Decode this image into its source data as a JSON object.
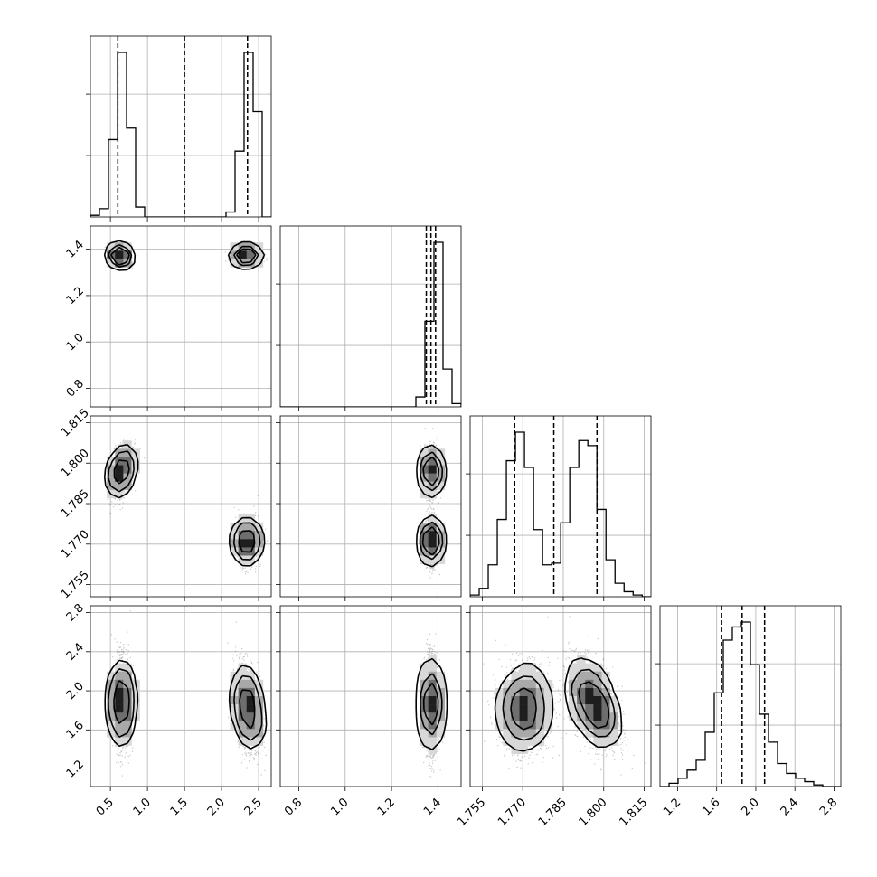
{
  "chart_data": {
    "type": "corner",
    "title": "",
    "parameters": [
      {
        "name": "",
        "range": [
          0.23,
          2.67
        ],
        "ticks": [
          0.5,
          1.0,
          1.5,
          2.0,
          2.5
        ],
        "tick_labels": [
          "0.5",
          "1.0",
          "1.5",
          "2.0",
          "2.5"
        ]
      },
      {
        "name": "",
        "range": [
          0.72,
          1.5
        ],
        "ticks": [
          0.8,
          1.0,
          1.2,
          1.4
        ],
        "tick_labels": [
          "0.8",
          "1.0",
          "1.2",
          "1.4"
        ]
      },
      {
        "name": "",
        "range": [
          1.7505,
          1.8175
        ],
        "ticks": [
          1.755,
          1.77,
          1.785,
          1.8,
          1.815
        ],
        "tick_labels": [
          "1.755",
          "1.770",
          "1.785",
          "1.800",
          "1.815"
        ]
      },
      {
        "name": "",
        "range": [
          1.02,
          2.87
        ],
        "ticks": [
          1.2,
          1.6,
          2.0,
          2.4,
          2.8
        ],
        "tick_labels": [
          "1.2",
          "1.6",
          "2.0",
          "2.4",
          "2.8"
        ]
      }
    ],
    "diagonal": [
      {
        "param": 0,
        "bins": [
          0.23,
          0.352,
          0.474,
          0.596,
          0.718,
          0.84,
          0.962,
          1.084,
          1.206,
          1.328,
          1.45,
          1.572,
          1.694,
          1.816,
          1.938,
          2.06,
          2.182,
          2.304,
          2.426,
          2.548,
          2.67
        ],
        "counts": [
          0.01,
          0.05,
          0.47,
          1.0,
          0.54,
          0.06,
          0,
          0,
          0,
          0,
          0,
          0,
          0,
          0,
          0,
          0.03,
          0.4,
          1.0,
          0.64,
          0.0
        ],
        "quantiles": [
          0.6,
          1.5,
          2.35
        ]
      },
      {
        "param": 1,
        "bins": [
          0.72,
          0.759,
          0.798,
          0.837,
          0.876,
          0.915,
          0.954,
          0.993,
          1.032,
          1.071,
          1.11,
          1.149,
          1.188,
          1.227,
          1.266,
          1.305,
          1.344,
          1.383,
          1.422,
          1.461,
          1.5
        ],
        "counts": [
          0,
          0,
          0,
          0,
          0,
          0,
          0,
          0,
          0,
          0,
          0,
          0,
          0,
          0,
          0,
          0.06,
          0.52,
          1.0,
          0.23,
          0.02
        ],
        "quantiles": [
          1.35,
          1.37,
          1.39
        ]
      },
      {
        "param": 2,
        "bins": [
          1.7505,
          1.753855,
          1.75721,
          1.760565,
          1.76392,
          1.767275,
          1.77063,
          1.773985,
          1.77734,
          1.780695,
          1.78405,
          1.787405,
          1.79076,
          1.794115,
          1.79747,
          1.800825,
          1.80418,
          1.807535,
          1.81089,
          1.814245,
          1.8176
        ],
        "counts": [
          0.01,
          0.05,
          0.19,
          0.46,
          0.81,
          0.98,
          0.77,
          0.4,
          0.19,
          0.2,
          0.44,
          0.77,
          0.93,
          0.9,
          0.52,
          0.22,
          0.08,
          0.03,
          0.01,
          0
        ],
        "quantiles": [
          1.767,
          1.7815,
          1.7975
        ]
      },
      {
        "param": 3,
        "bins": [
          1.02,
          1.1125,
          1.205,
          1.2975,
          1.39,
          1.4825,
          1.575,
          1.6675,
          1.76,
          1.8525,
          1.945,
          2.0375,
          2.13,
          2.2225,
          2.315,
          2.4075,
          2.5,
          2.5925,
          2.685,
          2.7775,
          2.87
        ],
        "counts": [
          0,
          0.02,
          0.05,
          0.1,
          0.16,
          0.33,
          0.57,
          0.89,
          0.97,
          1.0,
          0.74,
          0.44,
          0.27,
          0.14,
          0.08,
          0.05,
          0.03,
          0.01,
          0,
          0
        ],
        "quantiles": [
          1.65,
          1.86,
          2.09
        ]
      }
    ],
    "panels": [
      {
        "x": 0,
        "y": 1,
        "modes": [
          {
            "center": [
              0.63,
              1.37
            ],
            "sigma": [
              0.06,
              0.016
            ],
            "rho": -0.45,
            "n": 1600
          },
          {
            "center": [
              2.33,
              1.37
            ],
            "sigma": [
              0.085,
              0.011
            ],
            "rho": 0.1,
            "n": 1600
          }
        ]
      },
      {
        "x": 0,
        "y": 2,
        "modes": [
          {
            "center": [
              0.65,
              1.797
            ],
            "sigma": [
              0.07,
              0.0045
            ],
            "rho": 0.45,
            "n": 1600
          },
          {
            "center": [
              2.34,
              1.771
            ],
            "sigma": [
              0.075,
              0.004
            ],
            "rho": 0.0,
            "n": 1600
          }
        ]
      },
      {
        "x": 1,
        "y": 2,
        "modes": [
          {
            "center": [
              1.37,
              1.797
            ],
            "sigma": [
              0.014,
              0.0045
            ],
            "rho": 0.0,
            "n": 1600
          },
          {
            "center": [
              1.37,
              1.771
            ],
            "sigma": [
              0.014,
              0.004
            ],
            "rho": 0.0,
            "n": 1600
          }
        ]
      },
      {
        "x": 0,
        "y": 3,
        "modes": [
          {
            "center": [
              0.65,
              1.88
            ],
            "sigma": [
              0.06,
              0.22
            ],
            "rho": 0.0,
            "n": 1600
          },
          {
            "center": [
              2.35,
              1.83
            ],
            "sigma": [
              0.08,
              0.22
            ],
            "rho": -0.3,
            "n": 1600
          }
        ]
      },
      {
        "x": 1,
        "y": 3,
        "modes": [
          {
            "center": [
              1.37,
              1.86
            ],
            "sigma": [
              0.015,
              0.22
            ],
            "rho": 0.0,
            "n": 3200
          }
        ]
      },
      {
        "x": 2,
        "y": 3,
        "modes": [
          {
            "center": [
              1.7705,
              1.82
            ],
            "sigma": [
              0.0045,
              0.22
            ],
            "rho": 0.0,
            "n": 1600
          },
          {
            "center": [
              1.796,
              1.87
            ],
            "sigma": [
              0.0045,
              0.22
            ],
            "rho": -0.45,
            "n": 1600
          }
        ]
      }
    ],
    "grid": true,
    "legend": "none"
  }
}
